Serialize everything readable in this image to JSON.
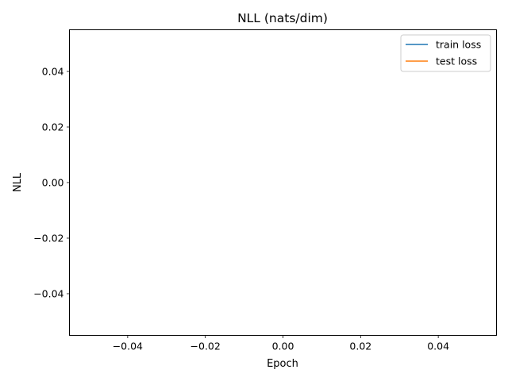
{
  "chart_data": {
    "type": "line",
    "title": "NLL (nats/dim)",
    "xlabel": "Epoch",
    "ylabel": "NLL",
    "xlim": [
      -0.055,
      0.055
    ],
    "ylim": [
      -0.055,
      0.055
    ],
    "xticks": [
      -0.04,
      -0.02,
      0.0,
      0.02,
      0.04
    ],
    "yticks": [
      -0.04,
      -0.02,
      0.0,
      0.02,
      0.04
    ],
    "xtick_labels": [
      "−0.04",
      "−0.02",
      "0.00",
      "0.02",
      "0.04"
    ],
    "ytick_labels": [
      "−0.04",
      "−0.02",
      "0.00",
      "0.02",
      "0.04"
    ],
    "grid": false,
    "legend": {
      "placement": "upper right"
    },
    "series": [
      {
        "name": "train loss",
        "color": "#1f77b4",
        "x": [],
        "y": []
      },
      {
        "name": "test loss",
        "color": "#ff7f0e",
        "x": [],
        "y": []
      }
    ]
  }
}
